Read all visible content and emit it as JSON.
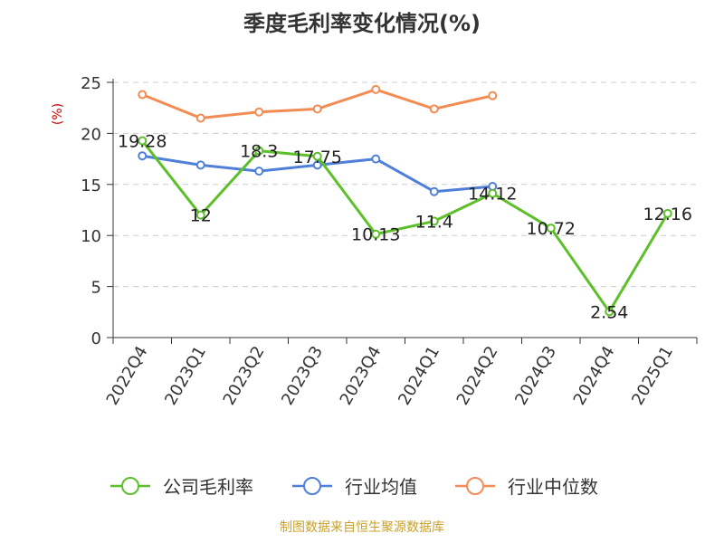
{
  "footer": "制图数据来自恒生聚源数据库",
  "chart_data": {
    "type": "line",
    "title": "季度毛利率变化情况(%)",
    "ylabel": "(%)",
    "xlabel": "",
    "categories": [
      "2022Q4",
      "2023Q1",
      "2023Q2",
      "2023Q3",
      "2023Q4",
      "2024Q1",
      "2024Q2",
      "2024Q3",
      "2024Q4",
      "2025Q1"
    ],
    "ylim": [
      0,
      25
    ],
    "yticks": [
      0,
      5,
      10,
      15,
      20,
      25
    ],
    "grid": true,
    "legend_position": "bottom",
    "series": [
      {
        "name": "公司毛利率",
        "color": "#5dbf2a",
        "values": [
          19.28,
          12,
          18.3,
          17.75,
          10.13,
          11.4,
          14.12,
          10.72,
          2.54,
          12.16
        ],
        "labels": [
          "19.28",
          "12",
          "18.3",
          "17.75",
          "10.13",
          "11.4",
          "14.12",
          "10.72",
          "2.54",
          "12.16"
        ]
      },
      {
        "name": "行业均值",
        "color": "#4f7fd8",
        "values": [
          17.8,
          16.9,
          16.3,
          16.9,
          17.5,
          14.3,
          14.8,
          null,
          null,
          null
        ]
      },
      {
        "name": "行业中位数",
        "color": "#f28c55",
        "values": [
          23.8,
          21.5,
          22.1,
          22.4,
          24.3,
          22.4,
          23.7,
          null,
          null,
          null
        ]
      }
    ]
  }
}
